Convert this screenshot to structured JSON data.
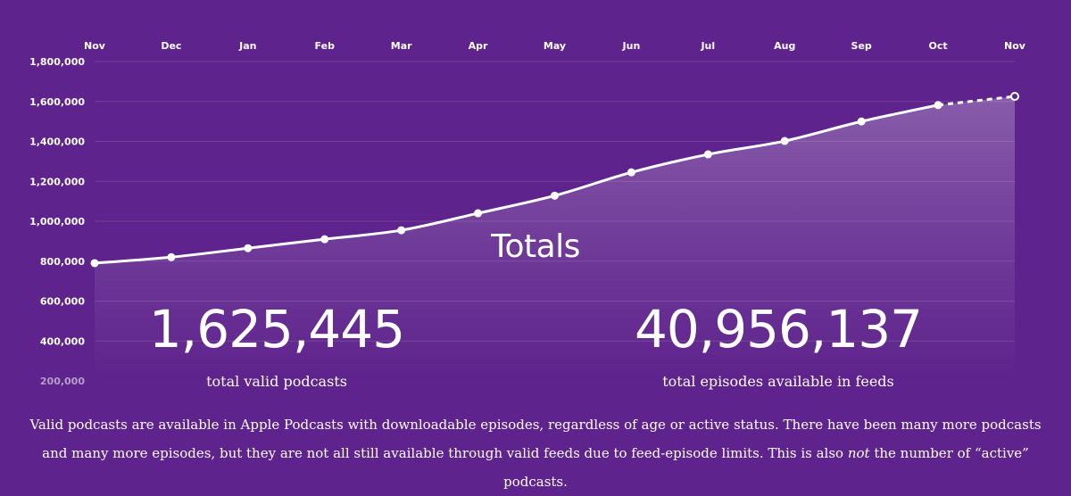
{
  "chart_data": {
    "type": "area",
    "categories": [
      "Nov",
      "Dec",
      "Jan",
      "Feb",
      "Mar",
      "Apr",
      "May",
      "Jun",
      "Jul",
      "Aug",
      "Sep",
      "Oct",
      "Nov"
    ],
    "values": [
      790000,
      820000,
      865000,
      910000,
      955000,
      1040000,
      1128000,
      1245000,
      1335000,
      1402000,
      1500000,
      1582000,
      1625445
    ],
    "projected_last_segment": true,
    "yticks": [
      "1,800,000",
      "1,600,000",
      "1,400,000",
      "1,200,000",
      "1,000,000",
      "800,000",
      "600,000",
      "400,000",
      "200,000"
    ],
    "ylim": [
      200000,
      1800000
    ],
    "grid": true,
    "title": "Totals",
    "colors": {
      "background": "#5e238c",
      "line": "#ffffff"
    }
  },
  "stats": {
    "podcasts_value": "1,625,445",
    "podcasts_label": "total valid podcasts",
    "episodes_value": "40,956,137",
    "episodes_label": "total episodes available in feeds"
  },
  "footnote": {
    "part1": "Valid podcasts are available in Apple Podcasts with downloadable episodes, regardless of age or active status. There have been many more podcasts and many more episodes, but they are not all still available through valid feeds due to feed-episode limits. This is also ",
    "emphasis": "not",
    "part2": " the number of “active” podcasts."
  }
}
